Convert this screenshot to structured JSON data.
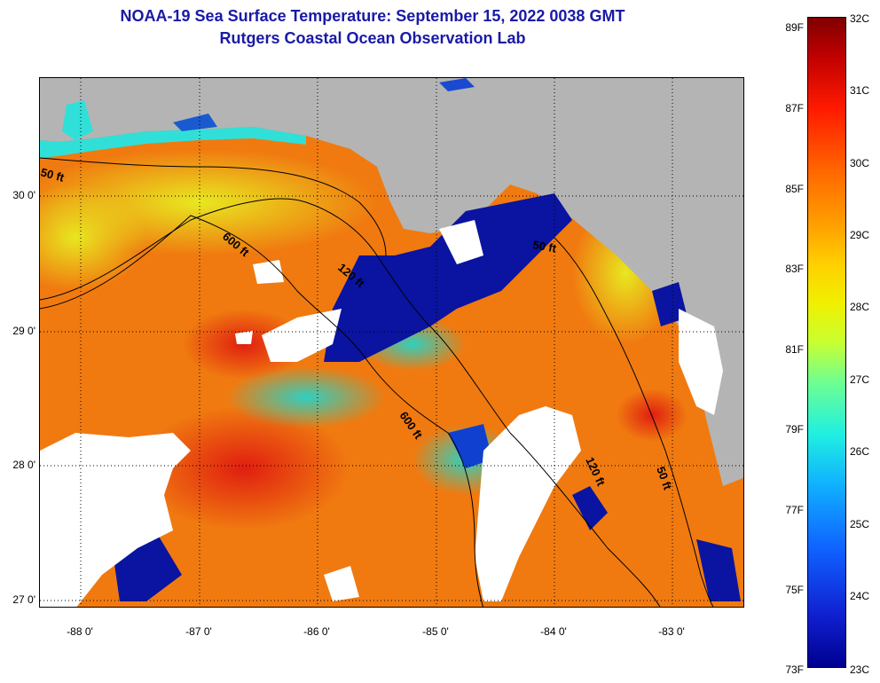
{
  "title_line_1": "NOAA-19 Sea Surface Temperature:  September 15, 2022 0038 GMT",
  "title_line_2": "Rutgers Coastal Ocean Observation Lab",
  "map": {
    "lon_ticks": [
      "-88 0'",
      "-87 0'",
      "-86 0'",
      "-85 0'",
      "-84 0'",
      "-83 0'"
    ],
    "lat_ticks": [
      "30 0'",
      "29 0'",
      "28 0'",
      "27 0'"
    ],
    "contour_labels": [
      "50 ft",
      "600 ft",
      "120 ft",
      "50 ft",
      "600 ft",
      "120 ft",
      "50 ft"
    ],
    "colors": {
      "land": "#b4b4b4",
      "cloud": "#ffffff",
      "contour": "#000000"
    }
  },
  "colorbar": {
    "fahrenheit_labels": [
      "89F",
      "87F",
      "85F",
      "83F",
      "81F",
      "79F",
      "77F",
      "75F",
      "73F"
    ],
    "celsius_labels": [
      "32C",
      "31C",
      "30C",
      "29C",
      "28C",
      "27C",
      "26C",
      "25C",
      "24C",
      "23C"
    ],
    "range_c": [
      23,
      32
    ],
    "range_f": [
      73,
      89
    ]
  }
}
